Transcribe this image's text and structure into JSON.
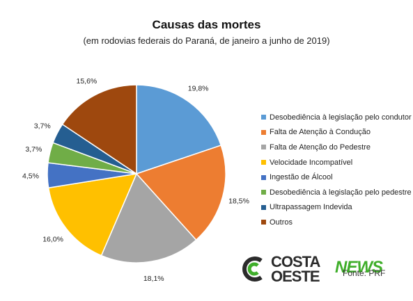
{
  "chart_data": {
    "type": "pie",
    "title": "Causas das mortes",
    "subtitle": "(em rodovias federais do Paraná, de janeiro a junho de 2019)",
    "slices": [
      {
        "name": "Desobediência à legislação pelo condutor",
        "value": 19.8,
        "label": "19,8%",
        "color": "#5b9bd5"
      },
      {
        "name": "Falta de Atenção à Condução",
        "value": 18.5,
        "label": "18,5%",
        "color": "#ed7d31"
      },
      {
        "name": "Falta de Atenção do Pedestre",
        "value": 18.1,
        "label": "18,1%",
        "color": "#a5a5a5"
      },
      {
        "name": "Velocidade Incompatível",
        "value": 16.0,
        "label": "16,0%",
        "color": "#ffc000"
      },
      {
        "name": "Ingestão de Álcool",
        "value": 4.5,
        "label": "4,5%",
        "color": "#4472c4"
      },
      {
        "name": "Desobediência à legislação pelo pedestre",
        "value": 3.7,
        "label": "3,7%",
        "color": "#70ad47"
      },
      {
        "name": "Ultrapassagem Indevida",
        "value": 3.7,
        "label": "3,7%",
        "color": "#255e91"
      },
      {
        "name": "Outros",
        "value": 15.6,
        "label": "15,6%",
        "color": "#9e480e"
      }
    ],
    "legend_position": "right"
  },
  "branding": {
    "logo_top": "COSTA",
    "logo_bottom": "OESTE",
    "logo_news": "NEWS",
    "source": "Fonte: PRF"
  }
}
